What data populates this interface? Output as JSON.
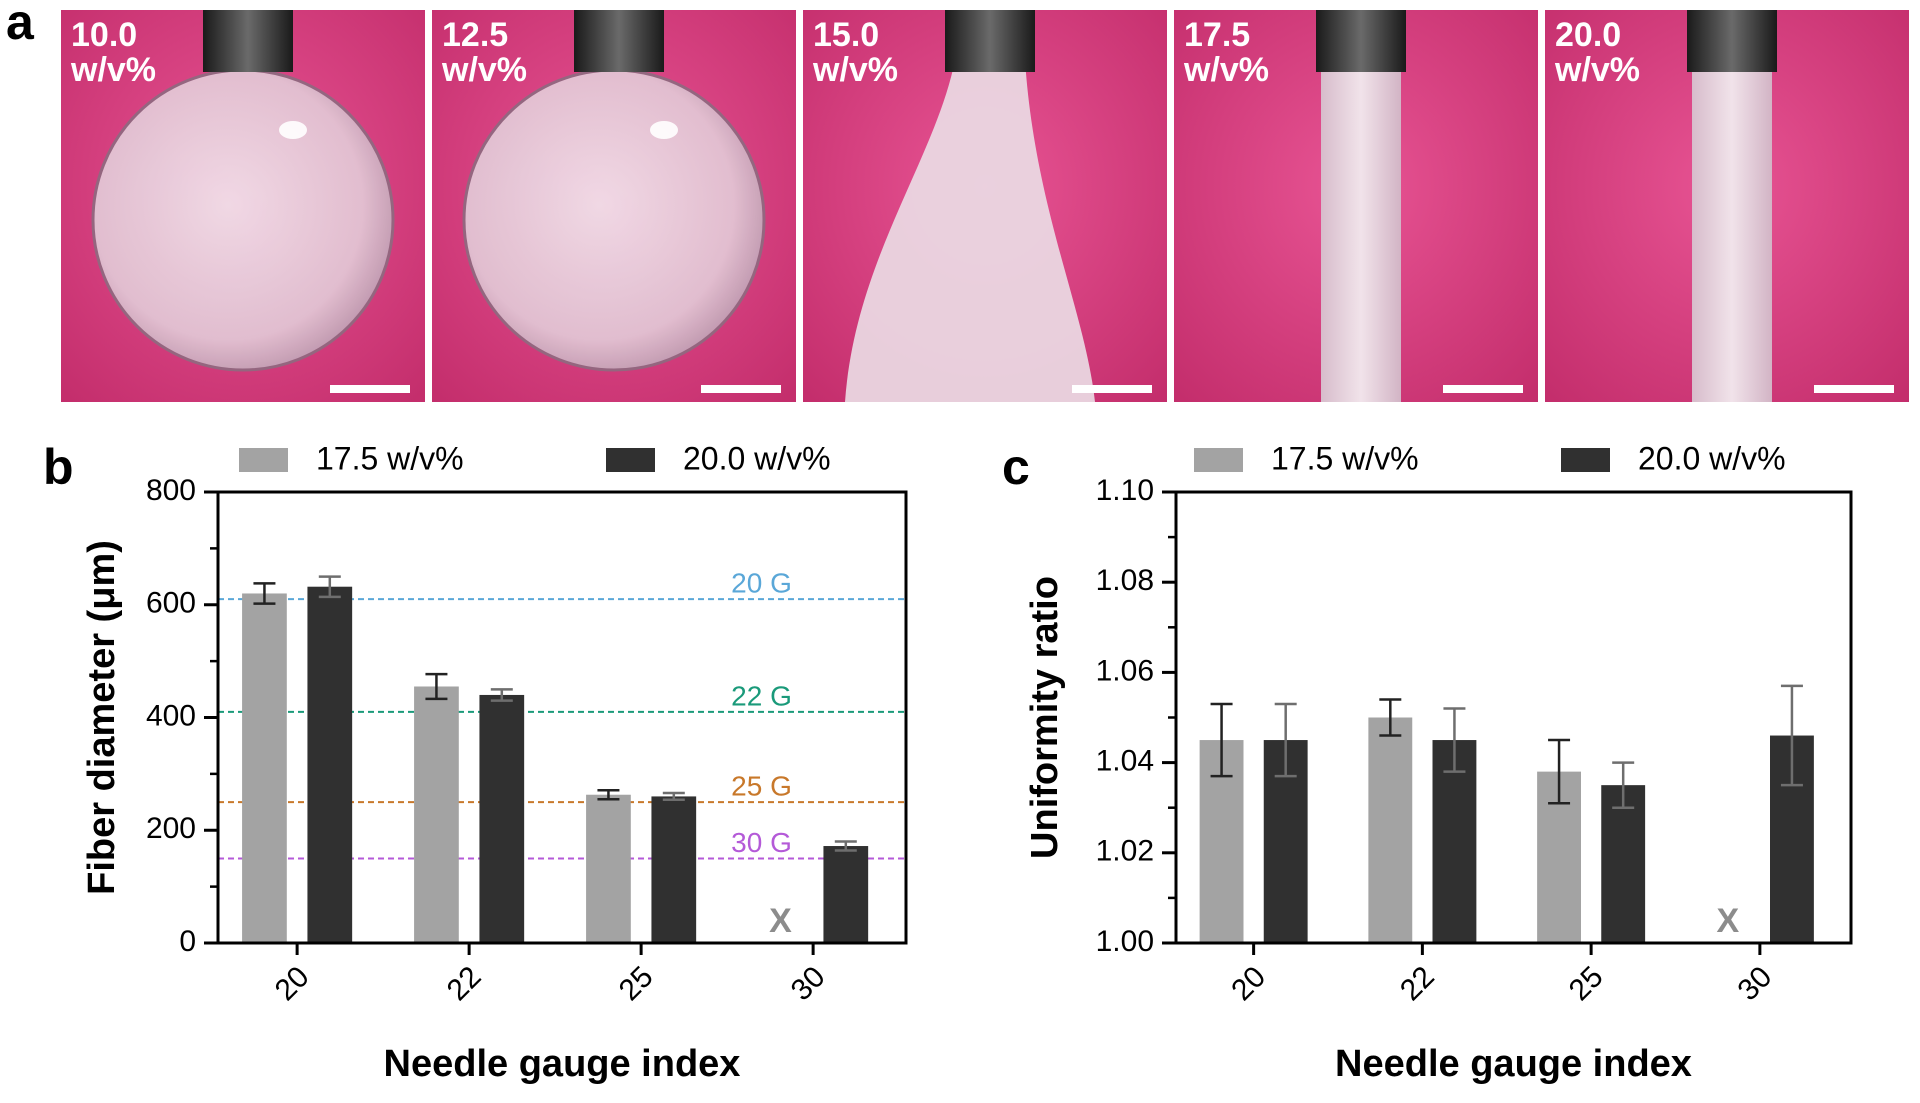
{
  "panel_labels": [
    "a",
    "b",
    "c"
  ],
  "photos": [
    {
      "concentration": "10.0",
      "unit": "w/v%",
      "shape": "droplet"
    },
    {
      "concentration": "12.5",
      "unit": "w/v%",
      "shape": "droplet"
    },
    {
      "concentration": "15.0",
      "unit": "w/v%",
      "shape": "plume"
    },
    {
      "concentration": "17.5",
      "unit": "w/v%",
      "shape": "fiber"
    },
    {
      "concentration": "20.0",
      "unit": "w/v%",
      "shape": "fiber"
    }
  ],
  "chart_data": [
    {
      "type": "bar",
      "y_label": "Fiber diameter (μm)",
      "x_label": "Needle gauge index",
      "categories": [
        "20",
        "22",
        "25",
        "30"
      ],
      "series": [
        {
          "name": "17.5 w/v%",
          "color": "#a3a3a3",
          "error_color": "#222222",
          "values": [
            620,
            455,
            263,
            null
          ],
          "errors": [
            18,
            22,
            8,
            null
          ]
        },
        {
          "name": "20.0 w/v%",
          "color": "#303030",
          "error_color": "#6e6e6e",
          "values": [
            632,
            440,
            260,
            172
          ],
          "errors": [
            18,
            10,
            6,
            8
          ]
        }
      ],
      "ylim": [
        0,
        800
      ],
      "yticks": [
        0,
        200,
        400,
        600,
        800
      ],
      "yticks_minor": [
        100,
        300,
        500,
        700
      ],
      "reference_lines": [
        {
          "value": 610,
          "label": "20 G",
          "color": "#5aa7d8"
        },
        {
          "value": 410,
          "label": "22 G",
          "color": "#1a9a7a"
        },
        {
          "value": 250,
          "label": "25 G",
          "color": "#c8782a"
        },
        {
          "value": 150,
          "label": "30 G",
          "color": "#b45ad8"
        }
      ],
      "missing_marker": "X"
    },
    {
      "type": "bar",
      "y_label": "Uniformity ratio",
      "x_label": "Needle gauge index",
      "categories": [
        "20",
        "22",
        "25",
        "30"
      ],
      "series": [
        {
          "name": "17.5 w/v%",
          "color": "#a3a3a3",
          "error_color": "#222222",
          "values": [
            1.045,
            1.05,
            1.038,
            null
          ],
          "errors": [
            0.008,
            0.004,
            0.007,
            null
          ]
        },
        {
          "name": "20.0 w/v%",
          "color": "#303030",
          "error_color": "#6e6e6e",
          "values": [
            1.045,
            1.045,
            1.035,
            1.046
          ],
          "errors": [
            0.008,
            0.007,
            0.005,
            0.011
          ]
        }
      ],
      "ylim": [
        1.0,
        1.1
      ],
      "yticks": [
        {
          "value": 1.0,
          "label": "1.00"
        },
        {
          "value": 1.02,
          "label": "1.02"
        },
        {
          "value": 1.04,
          "label": "1.04"
        },
        {
          "value": 1.06,
          "label": "1.06"
        },
        {
          "value": 1.08,
          "label": "1.08"
        },
        {
          "value": 1.1,
          "label": "1.10"
        }
      ],
      "yticks_minor": [
        1.01,
        1.03,
        1.05,
        1.07,
        1.09
      ],
      "missing_marker": "X"
    }
  ]
}
